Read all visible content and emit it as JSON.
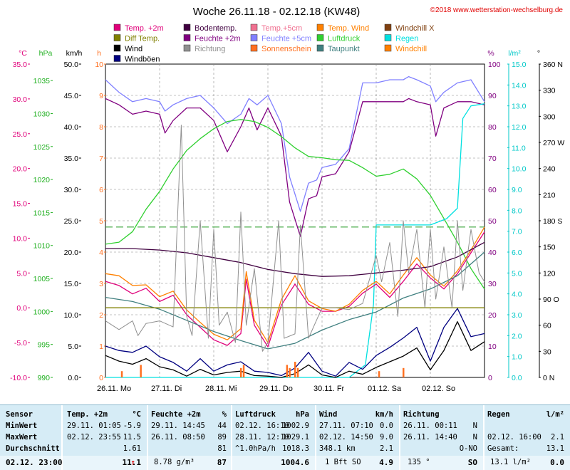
{
  "chart_data": {
    "type": "line",
    "title": "Woche 26.11.18 - 02.12.18 (KW48)",
    "copyright": "©2018 www.wetterstation-wechselburg.de",
    "legend": [
      {
        "name": "Temp. +2m",
        "color": "#e0007a",
        "style": "square"
      },
      {
        "name": "Bodentemp.",
        "color": "#400040",
        "style": "square"
      },
      {
        "name": "Temp.+5cm",
        "color": "#f07090",
        "style": "square"
      },
      {
        "name": "Temp. Wind",
        "color": "#ff8000",
        "style": "square"
      },
      {
        "name": "Windchill X",
        "color": "#804010",
        "style": "square"
      },
      {
        "name": "Diff Temp.",
        "color": "#808000",
        "style": "square"
      },
      {
        "name": "Feuchte +2m",
        "color": "#800080",
        "style": "square"
      },
      {
        "name": "Feuchte +5cm",
        "color": "#8080ff",
        "style": "square"
      },
      {
        "name": "Luftdruck",
        "color": "#30d030",
        "style": "square"
      },
      {
        "name": "Regen",
        "color": "#00e0e0",
        "style": "square"
      },
      {
        "name": "Wind",
        "color": "#000000",
        "style": "square"
      },
      {
        "name": "Richtung",
        "color": "#909090",
        "style": "square"
      },
      {
        "name": "Sonnenschein",
        "color": "#ff7020",
        "style": "square"
      },
      {
        "name": "Taupunkt",
        "color": "#408080",
        "style": "square"
      },
      {
        "name": "Windchill",
        "color": "#ff8000",
        "style": "square"
      },
      {
        "name": "Windböen",
        "color": "#000080",
        "style": "square"
      }
    ],
    "axes_left": [
      {
        "label": "°C",
        "color": "#e0007a",
        "min": -10,
        "max": 35,
        "ticks": [
          "35.0",
          "30.0",
          "25.0",
          "20.0",
          "15.0",
          "10.0",
          "5.0",
          "0.0",
          "-5.0",
          "-10.0"
        ]
      },
      {
        "label": "hPa",
        "color": "#20b020",
        "min": 990,
        "max": 1037.5,
        "ticks": [
          "1035",
          "1030",
          "1025",
          "1020",
          "1015",
          "1010",
          "1005",
          "1000",
          "995",
          "990"
        ]
      },
      {
        "label": "km/h",
        "color": "#000000",
        "min": 0,
        "max": 50,
        "ticks": [
          "50.0",
          "45.0",
          "40.0",
          "35.0",
          "30.0",
          "25.0",
          "20.0",
          "15.0",
          "10.0",
          "5.0",
          "0.0"
        ]
      },
      {
        "label": "h",
        "color": "#ff7020",
        "min": 0,
        "max": 10,
        "ticks": [
          "10",
          "9",
          "8",
          "7",
          "6",
          "5",
          "4",
          "3",
          "2",
          "1",
          "0"
        ]
      }
    ],
    "axes_right": [
      {
        "label": "%",
        "color": "#800080",
        "min": 0,
        "max": 100,
        "ticks": [
          "100",
          "90",
          "80",
          "70",
          "60",
          "50",
          "40",
          "30",
          "20",
          "10",
          "0"
        ]
      },
      {
        "label": "l/m²",
        "color": "#00c8c8",
        "min": 0,
        "max": 15,
        "ticks": [
          "15.0",
          "14.0",
          "13.0",
          "12.0",
          "11.0",
          "10.0",
          "9.0",
          "8.0",
          "7.0",
          "6.0",
          "5.0",
          "4.0",
          "3.0",
          "2.0",
          "1.0",
          "0.0"
        ]
      },
      {
        "label": "°",
        "color": "#000000",
        "min": 0,
        "max": 360,
        "ticks": [
          "360 N",
          "330",
          "300",
          "270 W",
          "240",
          "210",
          "180 S",
          "150",
          "120",
          "90 O",
          "60",
          "30",
          "0 N"
        ]
      }
    ],
    "x_labels": [
      "26.11. Mo",
      "27.11. Di",
      "28.11. Mi",
      "29.11. Do",
      "30.11. Fr",
      "01.12. Sa",
      "02.12. So"
    ],
    "x_range": [
      0,
      7
    ],
    "reference_line": {
      "axis": "km/h",
      "value": 24,
      "color": "#30a030"
    },
    "series": [
      {
        "name": "Feuchte +5cm",
        "axis": "%",
        "color": "#8080ff",
        "x": [
          0,
          0.25,
          0.5,
          0.75,
          1.0,
          1.1,
          1.25,
          1.5,
          1.75,
          2.0,
          2.25,
          2.5,
          2.65,
          2.8,
          3.0,
          3.25,
          3.4,
          3.6,
          3.75,
          3.9,
          4.0,
          4.25,
          4.5,
          4.75,
          5.0,
          5.25,
          5.5,
          5.6,
          5.75,
          6.0,
          6.1,
          6.25,
          6.5,
          6.75,
          7.0
        ],
        "y": [
          95,
          91,
          88,
          89,
          88,
          85,
          87,
          89,
          90,
          86,
          81,
          84,
          89,
          87,
          90,
          81,
          64,
          53,
          62,
          63,
          67,
          68,
          73,
          94,
          94,
          95,
          95,
          96,
          95,
          93,
          88,
          91,
          94,
          95,
          88
        ]
      },
      {
        "name": "Feuchte +2m",
        "axis": "%",
        "color": "#800080",
        "x": [
          0,
          0.25,
          0.5,
          0.75,
          1.0,
          1.1,
          1.25,
          1.5,
          1.75,
          2.0,
          2.25,
          2.5,
          2.65,
          2.8,
          3.0,
          3.25,
          3.4,
          3.6,
          3.75,
          3.9,
          4.0,
          4.25,
          4.5,
          4.75,
          5.0,
          5.25,
          5.5,
          5.6,
          5.75,
          6.0,
          6.1,
          6.25,
          6.5,
          6.75,
          7.0
        ],
        "y": [
          89,
          87,
          84,
          85,
          84,
          78,
          82,
          86,
          86,
          82,
          72,
          80,
          86,
          79,
          86,
          77,
          56,
          45,
          57,
          58,
          64,
          65,
          72,
          88,
          88,
          88,
          88,
          89,
          88,
          87,
          77,
          86,
          88,
          88,
          87
        ]
      },
      {
        "name": "Luftdruck",
        "axis": "hPa",
        "color": "#30d030",
        "x": [
          0,
          0.25,
          0.5,
          0.75,
          1.0,
          1.25,
          1.5,
          1.75,
          2.0,
          2.25,
          2.5,
          2.75,
          3.0,
          3.25,
          3.5,
          3.75,
          4.0,
          4.25,
          4.5,
          4.75,
          5.0,
          5.25,
          5.5,
          5.75,
          6.0,
          6.25,
          6.5,
          6.75,
          7.0
        ],
        "y": [
          1010.2,
          1010.5,
          1012.1,
          1015.5,
          1018.2,
          1021.6,
          1024.4,
          1026.2,
          1027.7,
          1028.8,
          1029.1,
          1028.8,
          1027.9,
          1026.5,
          1024.8,
          1023.5,
          1023.3,
          1023.0,
          1022.9,
          1021.8,
          1020.5,
          1020.8,
          1021.6,
          1020.1,
          1017.6,
          1014.1,
          1010.5,
          1006.5,
          1003.4
        ]
      },
      {
        "name": "Regen",
        "axis": "l/m²",
        "color": "#00e0e0",
        "x": [
          0,
          4.5,
          4.8,
          4.95,
          5.0,
          5.5,
          6.0,
          6.3,
          6.5,
          6.6,
          6.75,
          7.0
        ],
        "y": [
          0,
          0,
          0.6,
          3.5,
          7.3,
          7.3,
          7.3,
          7.6,
          8.1,
          12.4,
          13.0,
          13.1
        ]
      },
      {
        "name": "Temp. +2m",
        "axis": "°C",
        "color": "#e0007a",
        "x": [
          0,
          0.25,
          0.5,
          0.75,
          1.0,
          1.25,
          1.5,
          1.75,
          2.0,
          2.25,
          2.5,
          2.6,
          2.75,
          3.0,
          3.25,
          3.5,
          3.75,
          4.0,
          4.25,
          4.5,
          4.75,
          5.0,
          5.25,
          5.5,
          5.75,
          6.0,
          6.25,
          6.5,
          6.75,
          7.0
        ],
        "y": [
          3.8,
          3.2,
          2.0,
          2.8,
          0.9,
          1.8,
          -1.0,
          -2.8,
          -4.6,
          -5.4,
          -3.7,
          4.1,
          -2.5,
          -5.6,
          0.4,
          3.4,
          0.5,
          -0.5,
          -0.5,
          0.2,
          2.1,
          3.4,
          1.5,
          3.8,
          6.3,
          4.3,
          2.7,
          4.9,
          7.9,
          10.9
        ]
      },
      {
        "name": "Temp. Wind",
        "axis": "°C",
        "color": "#ff8000",
        "x": [
          0,
          0.25,
          0.5,
          0.75,
          1.0,
          1.25,
          1.5,
          1.75,
          2.0,
          2.25,
          2.5,
          2.6,
          2.75,
          3.0,
          3.25,
          3.5,
          3.75,
          4.0,
          4.25,
          4.5,
          4.75,
          5.0,
          5.25,
          5.5,
          5.75,
          6.0,
          6.25,
          6.5,
          6.75,
          7.0
        ],
        "y": [
          4.9,
          4.6,
          3.2,
          3.3,
          1.6,
          2.4,
          -0.3,
          -2.1,
          -3.8,
          -4.6,
          -3.0,
          5.2,
          -1.8,
          -5.0,
          1.2,
          4.6,
          1.0,
          -0.1,
          -0.5,
          0.5,
          2.5,
          3.8,
          2.0,
          4.7,
          7.2,
          4.7,
          3.1,
          5.3,
          8.3,
          11.6
        ]
      },
      {
        "name": "Bodentemp.",
        "axis": "°C",
        "color": "#400040",
        "x": [
          0,
          0.5,
          1.0,
          1.5,
          2.0,
          2.5,
          3.0,
          3.5,
          4.0,
          4.5,
          5.0,
          5.5,
          6.0,
          6.5,
          7.0
        ],
        "y": [
          8.5,
          8.5,
          8.3,
          7.9,
          7.2,
          6.5,
          5.5,
          4.9,
          4.5,
          4.6,
          5.0,
          5.4,
          5.9,
          7.3,
          9.4
        ]
      },
      {
        "name": "Taupunkt",
        "axis": "°C",
        "color": "#408080",
        "x": [
          0,
          0.5,
          1.0,
          1.5,
          2.0,
          2.5,
          3.0,
          3.5,
          4.0,
          4.5,
          5.0,
          5.5,
          6.0,
          6.5,
          7.0
        ],
        "y": [
          1.5,
          0.9,
          -0.2,
          -1.8,
          -3.4,
          -4.7,
          -5.9,
          -5.1,
          -3.2,
          -1.7,
          -0.6,
          1.4,
          2.7,
          4.6,
          8.0
        ]
      },
      {
        "name": "Diff Temp.",
        "axis": "°C",
        "color": "#808000",
        "x": [
          0,
          1.0,
          2.0,
          2.5,
          2.6,
          2.75,
          3.0,
          3.5,
          3.55,
          3.7,
          4.0,
          5.0,
          6.0,
          7.0
        ],
        "y": [
          0,
          0,
          0,
          0,
          0,
          0,
          0,
          0,
          0,
          0,
          0,
          0,
          0,
          0
        ]
      },
      {
        "name": "Wind",
        "axis": "km/h",
        "color": "#000000",
        "x": [
          0,
          0.25,
          0.5,
          0.75,
          1.0,
          1.25,
          1.5,
          1.75,
          2.0,
          2.25,
          2.5,
          2.75,
          3.0,
          3.25,
          3.5,
          3.75,
          4.0,
          4.25,
          4.5,
          4.75,
          5.0,
          5.25,
          5.5,
          5.75,
          6.0,
          6.25,
          6.5,
          6.75,
          7.0
        ],
        "y": [
          3.5,
          2.6,
          2.1,
          3.0,
          1.7,
          1.2,
          0.2,
          1.3,
          0.4,
          0.8,
          1.0,
          0.3,
          0.2,
          0.0,
          0.6,
          2.0,
          0.4,
          0.0,
          1.0,
          0.5,
          1.6,
          2.5,
          3.4,
          4.7,
          1.2,
          4.3,
          8.9,
          4.3,
          5.7
        ]
      },
      {
        "name": "Windböen",
        "axis": "km/h",
        "color": "#000080",
        "x": [
          0,
          0.25,
          0.5,
          0.75,
          1.0,
          1.25,
          1.5,
          1.75,
          2.0,
          2.25,
          2.5,
          2.75,
          3.0,
          3.25,
          3.5,
          3.75,
          4.0,
          4.25,
          4.5,
          4.75,
          5.0,
          5.25,
          5.5,
          5.75,
          6.0,
          6.25,
          6.5,
          6.75,
          7.0
        ],
        "y": [
          5.0,
          4.3,
          4.0,
          5.0,
          3.3,
          2.4,
          1.0,
          3.0,
          1.0,
          2.0,
          2.5,
          1.0,
          0.8,
          0.3,
          1.5,
          4.0,
          1.0,
          0.2,
          2.4,
          1.3,
          3.5,
          4.8,
          6.3,
          8.0,
          2.6,
          8.0,
          11.0,
          6.5,
          7.0
        ]
      },
      {
        "name": "Richtung",
        "axis": "°",
        "color": "#909090",
        "x": [
          0,
          0.25,
          0.5,
          0.6,
          0.75,
          1.0,
          1.25,
          1.4,
          1.5,
          1.6,
          1.75,
          1.9,
          2.0,
          2.1,
          2.25,
          2.4,
          2.5,
          2.6,
          2.75,
          2.9,
          3.0,
          3.2,
          3.3,
          3.5,
          3.6,
          3.75,
          4.0,
          4.25,
          4.5,
          4.75,
          5.0,
          5.1,
          5.25,
          5.4,
          5.5,
          5.6,
          5.75,
          5.9,
          6.0,
          6.1,
          6.25,
          6.4,
          6.5,
          6.6,
          6.75,
          6.9,
          7.0
        ],
        "y": [
          65,
          55,
          65,
          48,
          62,
          65,
          58,
          290,
          70,
          48,
          180,
          45,
          170,
          60,
          75,
          40,
          190,
          60,
          125,
          30,
          40,
          180,
          45,
          50,
          175,
          45,
          80,
          80,
          78,
          85,
          140,
          110,
          155,
          70,
          180,
          120,
          170,
          80,
          170,
          90,
          150,
          80,
          180,
          100,
          170,
          120,
          110
        ]
      },
      {
        "name": "Sonnenschein",
        "axis": "h",
        "color": "#ff7020",
        "x": [
          0.3,
          0.65,
          2.5,
          2.55,
          3.35,
          3.4,
          3.5,
          3.55,
          5.05,
          5.5
        ],
        "y": [
          0.2,
          0.4,
          0.3,
          0.4,
          0.4,
          0.3,
          0.5,
          0.3,
          0.2,
          0.3
        ]
      }
    ]
  },
  "stats": {
    "headers": {
      "sensor": "Sensor",
      "temp": "Temp. +2m",
      "temp_unit": "°C",
      "hum": "Feuchte +2m",
      "hum_unit": "%",
      "press": "Luftdruck",
      "press_unit": "hPa",
      "wind": "Wind",
      "wind_unit": "km/h",
      "dir": "Richtung",
      "rain": "Regen",
      "rain_unit": "l/m²"
    },
    "rows": [
      {
        "label": "MinWert",
        "temp_t": "29.11. 01:05",
        "temp_v": "-5.9",
        "hum_t": "29.11. 14:45",
        "hum_v": "44",
        "press_t": "02.12. 16:10",
        "press_v": "1002.9",
        "wind_t": "27.11. 07:10",
        "wind_v": "0.0",
        "dir_t": "26.11. 00:11",
        "dir_v": "N",
        "rain_t": "",
        "rain_v": ""
      },
      {
        "label": "MaxWert",
        "temp_t": "02.12. 23:55",
        "temp_v": "11.5",
        "hum_t": "26.11. 08:50",
        "hum_v": "89",
        "press_t": "28.11. 12:10",
        "press_v": "1029.1",
        "wind_t": "02.12. 14:50",
        "wind_v": "9.0",
        "dir_t": "26.11. 14:40",
        "dir_v": "N",
        "rain_t": "02.12. 16:00",
        "rain_v": "2.1"
      },
      {
        "label": "Durchschnitt",
        "temp_t": "",
        "temp_v": "1.61",
        "hum_t": "",
        "hum_v": "81",
        "press_t": "^1.0hPa/h",
        "press_v": "1018.3",
        "wind_t": "348.1 km",
        "wind_v": "2.1",
        "dir_t": "",
        "dir_v": "O-NO",
        "rain_t": "Gesamt:",
        "rain_v": "13.1"
      }
    ],
    "current": {
      "time": "02.12. 23:00",
      "temp": "11.1",
      "trend": "↑",
      "abs_hum": "8.78 g/m³",
      "hum": "87",
      "press": "1004.6",
      "bft": "1 Bft SO",
      "wind": "4.9",
      "dir_deg": "135 °",
      "dir": "SO",
      "rain": "13.1 l/m²",
      "rain_v": "0.0"
    }
  }
}
